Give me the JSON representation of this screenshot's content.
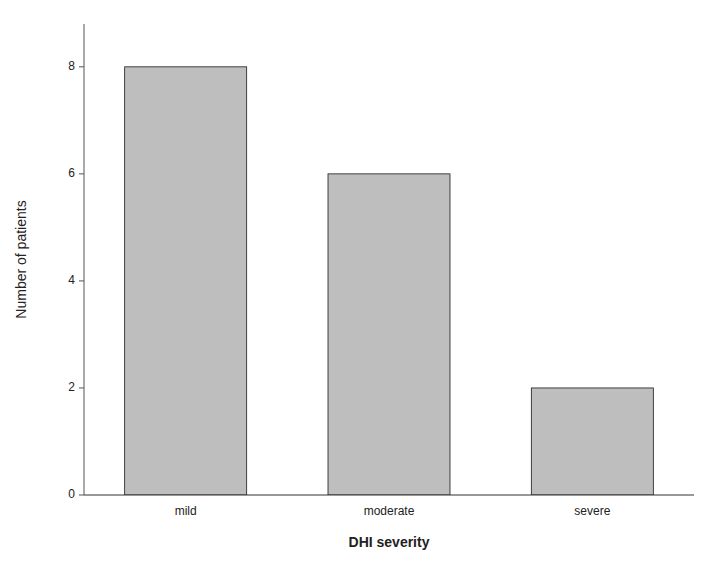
{
  "chart_data": {
    "type": "bar",
    "categories": [
      "mild",
      "moderate",
      "severe"
    ],
    "values": [
      8,
      6,
      2
    ],
    "color": "#bebebe",
    "xlabel": "DHI severity",
    "ylabel": "Number of patients",
    "ylim": [
      0,
      8.8
    ],
    "yticks": [
      0,
      2,
      4,
      6,
      8
    ],
    "grid": false
  }
}
